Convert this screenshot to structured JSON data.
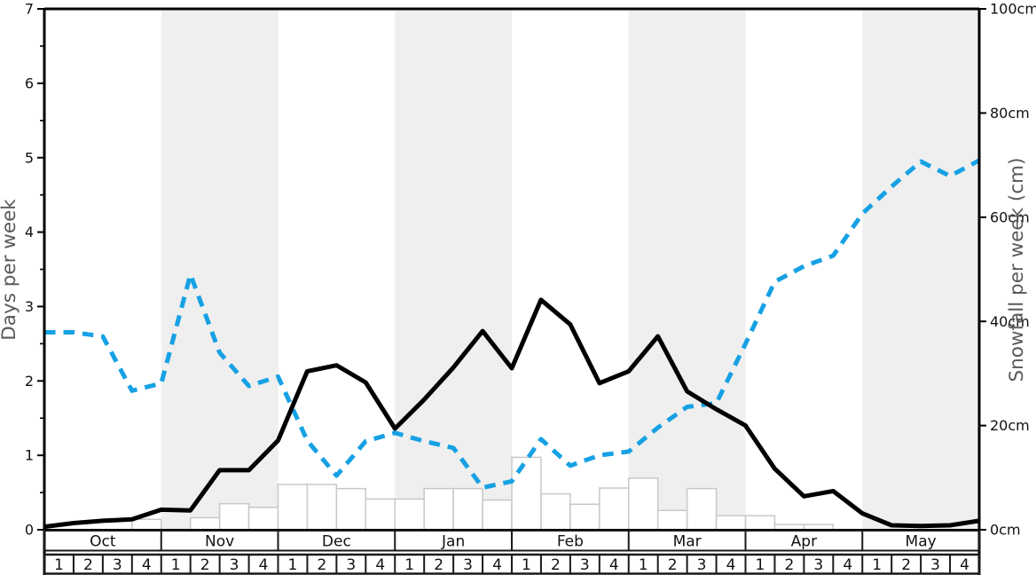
{
  "chart_data": {
    "type": "line+bar",
    "title": "",
    "months": [
      "Oct",
      "Nov",
      "Dec",
      "Jan",
      "Feb",
      "Mar",
      "Apr",
      "May"
    ],
    "weeks_per_month": 4,
    "week_labels": [
      "1",
      "2",
      "3",
      "4"
    ],
    "shaded_months": [
      "Nov",
      "Jan",
      "Mar",
      "May"
    ],
    "left_axis": {
      "label": "Days per week",
      "min": 0,
      "max": 7,
      "major_ticks": [
        0,
        1,
        2,
        3,
        4,
        5,
        6,
        7
      ],
      "tick_labels": [
        "0",
        "1",
        "2",
        "3",
        "4",
        "5",
        "6",
        "7"
      ],
      "minor_ticks": [
        0.5,
        1.5,
        2.5,
        3.5,
        4.5,
        5.5,
        6.5
      ]
    },
    "right_axis": {
      "label": "Snowfall per week (cm)",
      "min": 0,
      "max": 100,
      "major_ticks": [
        0,
        20,
        40,
        60,
        80,
        100
      ],
      "tick_labels": [
        "0cm",
        "20cm",
        "40cm",
        "60cm",
        "80cm",
        "100cm"
      ]
    },
    "series": [
      {
        "name": "days-per-week-line",
        "axis": "left",
        "style": "solid",
        "color": "#000000",
        "unit": "days",
        "values_at_week_boundaries": [
          0.04,
          0.09,
          0.12,
          0.14,
          0.27,
          0.26,
          0.8,
          0.8,
          1.2,
          2.13,
          2.21,
          1.98,
          1.36,
          1.75,
          2.18,
          2.67,
          2.17,
          3.09,
          2.76,
          1.97,
          2.13,
          2.6,
          1.86,
          1.62,
          1.4,
          0.82,
          0.45,
          0.52,
          0.22,
          0.06,
          0.05,
          0.06,
          0.12
        ]
      },
      {
        "name": "snowfall-line",
        "axis": "right",
        "style": "dashed",
        "color": "#16a1e4",
        "unit": "cm",
        "values_at_week_boundaries": [
          37.9,
          37.9,
          37.1,
          26.7,
          28.1,
          49.0,
          34.0,
          27.6,
          29.4,
          17.1,
          10.4,
          17.0,
          18.6,
          17.0,
          15.7,
          8.1,
          9.3,
          17.4,
          12.3,
          14.3,
          15.0,
          19.6,
          23.6,
          24.3,
          35.7,
          47.6,
          50.6,
          52.6,
          60.7,
          65.9,
          70.7,
          67.9,
          70.9
        ]
      },
      {
        "name": "snowfall-bars",
        "axis": "right",
        "style": "bar",
        "fill": "#ffffff",
        "stroke": "#c8c8c8",
        "unit": "cm",
        "values_per_week": [
          0,
          0,
          0,
          2.0,
          0,
          2.3,
          5.0,
          4.3,
          8.7,
          8.7,
          7.9,
          5.9,
          5.9,
          7.9,
          7.9,
          5.7,
          13.9,
          6.9,
          4.9,
          8.0,
          9.9,
          3.7,
          7.9,
          2.7,
          2.7,
          1.0,
          1.0,
          0,
          0,
          0,
          0,
          0
        ]
      }
    ],
    "colors": {
      "band": "#efefef",
      "frame": "#000000",
      "tick_text": "#111111",
      "axis_title_text": "#59595c",
      "bar_stroke": "#c8c8c8",
      "bar_fill": "#ffffff",
      "row_border": "#1a1a1a"
    },
    "legend": "none",
    "grid": "off"
  }
}
